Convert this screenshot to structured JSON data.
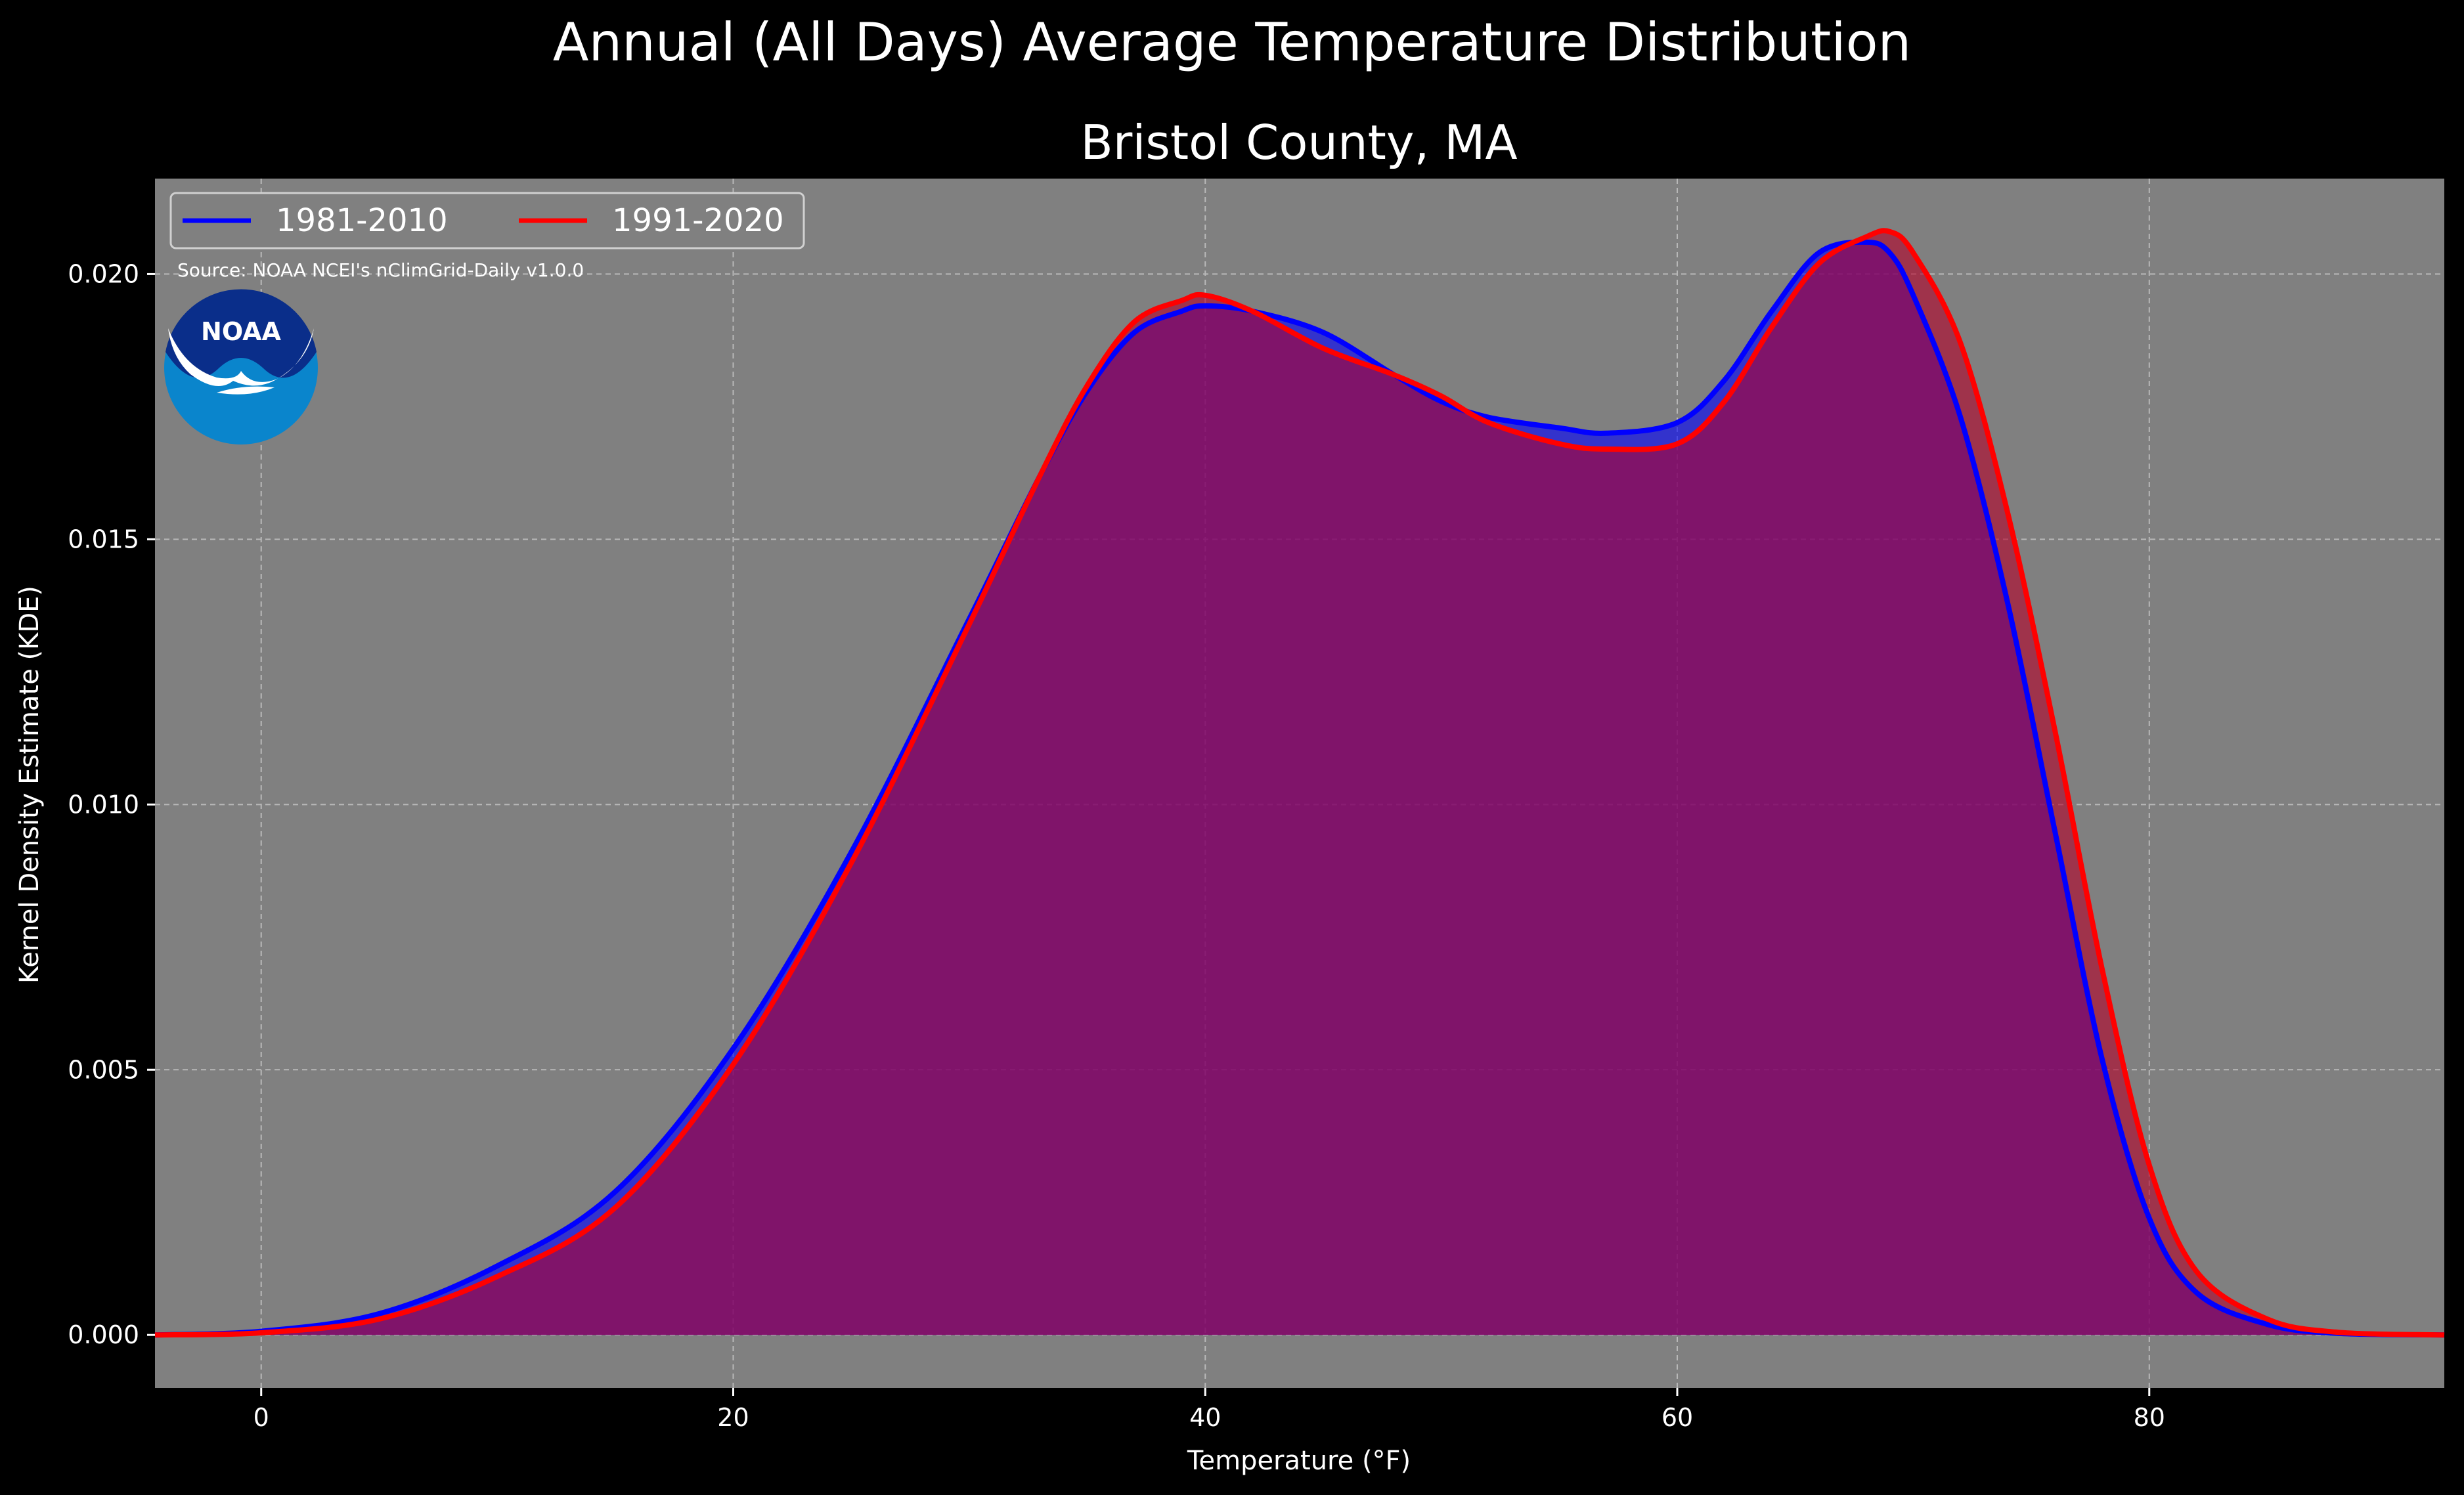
{
  "chart_data": {
    "type": "area",
    "title": "Annual (All Days) Average Temperature Distribution",
    "subtitle": "Bristol County, MA",
    "xlabel": "Temperature (°F)",
    "ylabel": "Kernel Density Estimate (KDE)",
    "xlim": [
      -4.5,
      92.5
    ],
    "ylim": [
      -0.001,
      0.0218
    ],
    "x_ticks": [
      0,
      20,
      40,
      60,
      80
    ],
    "x_tick_labels": [
      "0",
      "20",
      "40",
      "60",
      "80"
    ],
    "y_ticks": [
      0.0,
      0.005,
      0.01,
      0.015,
      0.02
    ],
    "y_tick_labels": [
      "0.000",
      "0.005",
      "0.010",
      "0.015",
      "0.020"
    ],
    "grid": true,
    "legend_placement": "top-left",
    "annotation": "Source: NOAA NCEI's nClimGrid-Daily v1.0.0",
    "logo_text": "NOAA",
    "x": [
      -4.5,
      0,
      5,
      10,
      15,
      20,
      25,
      30,
      33,
      35,
      37,
      39,
      40,
      42,
      45,
      48,
      50,
      52,
      55,
      57,
      60,
      62,
      64,
      66,
      68,
      69,
      70,
      72,
      74,
      76,
      78,
      80,
      82,
      85,
      88,
      92.5
    ],
    "series": [
      {
        "name": "1981-2010",
        "line_color": "#0000ff",
        "fill_color": "rgba(0,0,255,0.6)",
        "values": [
          0.0,
          7e-05,
          0.0004,
          0.0013,
          0.0027,
          0.0054,
          0.0091,
          0.0135,
          0.0162,
          0.0178,
          0.0189,
          0.0193,
          0.0194,
          0.0193,
          0.0189,
          0.0181,
          0.0176,
          0.0173,
          0.0171,
          0.017,
          0.0172,
          0.018,
          0.0193,
          0.0204,
          0.0206,
          0.0204,
          0.0196,
          0.0173,
          0.0138,
          0.0095,
          0.0052,
          0.0022,
          0.0008,
          0.0002,
          3e-05,
          0.0
        ]
      },
      {
        "name": "1991-2020",
        "line_color": "#ff0000",
        "fill_color": "rgba(180,0,40,0.6)",
        "values": [
          0.0,
          4e-05,
          0.0003,
          0.0011,
          0.0024,
          0.0051,
          0.0089,
          0.0134,
          0.0162,
          0.0179,
          0.0191,
          0.0195,
          0.0196,
          0.0193,
          0.0186,
          0.0181,
          0.0177,
          0.0172,
          0.0168,
          0.0167,
          0.0168,
          0.0176,
          0.019,
          0.0202,
          0.0207,
          0.0208,
          0.0204,
          0.0187,
          0.0155,
          0.0114,
          0.0069,
          0.0032,
          0.0012,
          0.0003,
          5e-05,
          0.0
        ]
      }
    ]
  }
}
